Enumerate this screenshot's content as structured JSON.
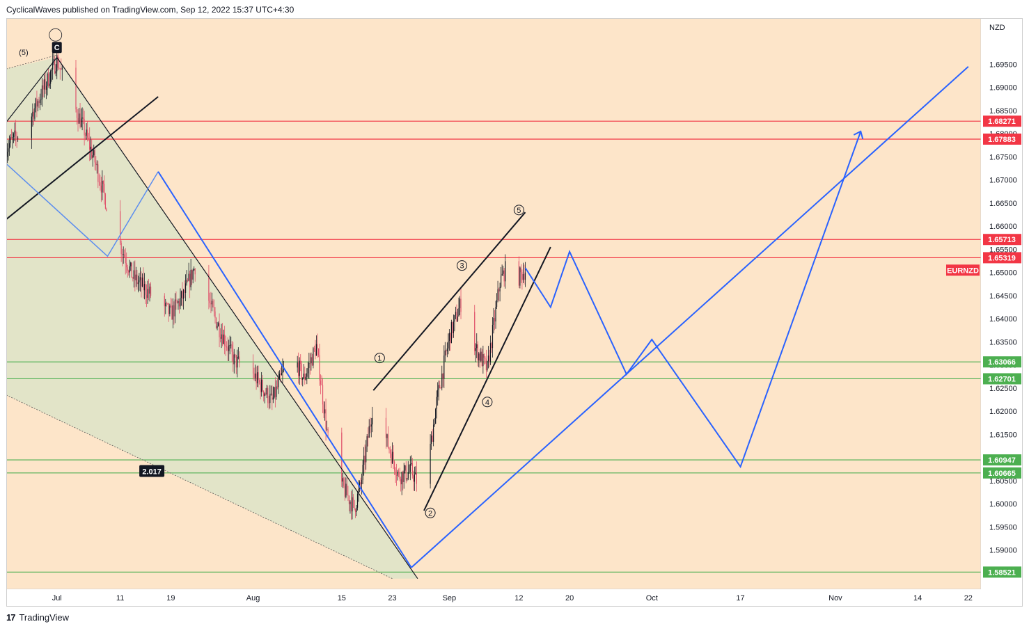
{
  "header": {
    "text": "CyclicalWaves published on TradingView.com, Sep 12, 2022 15:37 UTC+4:30"
  },
  "footer": {
    "brand": "TradingView",
    "logo_glyph": "17"
  },
  "colors": {
    "background": "#fde5c9",
    "resistance": "#f23645",
    "support": "#4caf50",
    "projection": "#2962ff",
    "candle_up": "#131722",
    "candle_down": "#e0506a"
  },
  "chart_data": {
    "type": "candlestick",
    "symbol": "EURNZD",
    "currency_label": "NZD",
    "ylim": [
      1.5815,
      1.705
    ],
    "y_ticks": [
      1.59,
      1.595,
      1.6,
      1.605,
      1.61,
      1.615,
      1.62,
      1.625,
      1.63,
      1.635,
      1.64,
      1.645,
      1.65,
      1.655,
      1.66,
      1.665,
      1.67,
      1.675,
      1.68,
      1.685,
      1.69,
      1.695
    ],
    "y_tick_labels": [
      "1.59000",
      "1.59500",
      "1.60000",
      "1.60500",
      "1.61000",
      "1.61500",
      "1.62000",
      "1.62500",
      "1.63000",
      "1.63500",
      "1.64000",
      "1.64500",
      "1.65000",
      "1.65500",
      "1.66000",
      "1.66500",
      "1.67000",
      "1.67500",
      "1.68000",
      "1.68500",
      "1.69000",
      "1.69500"
    ],
    "x_axis": {
      "start": "2022-06-23",
      "end": "2022-11-24",
      "tick_dates": [
        "2022-07-01",
        "2022-07-11",
        "2022-07-19",
        "2022-08-01",
        "2022-08-15",
        "2022-08-23",
        "2022-09-01",
        "2022-09-12",
        "2022-09-20",
        "2022-10-03",
        "2022-10-17",
        "2022-11-01",
        "2022-11-14",
        "2022-11-22"
      ],
      "tick_labels": [
        "Jul",
        "11",
        "19",
        "Aug",
        "15",
        "23",
        "Sep",
        "12",
        "20",
        "Oct",
        "17",
        "Nov",
        "14",
        "22"
      ]
    },
    "price_badge": {
      "label": "EURNZD",
      "price": 1.6505
    },
    "resistance_levels": [
      {
        "value": 1.68271,
        "label": "1.68271"
      },
      {
        "value": 1.67883,
        "label": "1.67883"
      },
      {
        "value": 1.65713,
        "label": "1.65713"
      },
      {
        "value": 1.65319,
        "label": "1.65319"
      }
    ],
    "support_levels": [
      {
        "value": 1.63066,
        "label": "1.63066"
      },
      {
        "value": 1.62701,
        "label": "1.62701"
      },
      {
        "value": 1.60947,
        "label": "1.60947"
      },
      {
        "value": 1.60665,
        "label": "1.60665"
      },
      {
        "value": 1.58521,
        "label": "1.58521"
      }
    ],
    "waypoints": [
      [
        "2022-06-23",
        1.677
      ],
      [
        "2022-06-25",
        1.68
      ],
      [
        "2022-06-27",
        1.684
      ],
      [
        "2022-06-29",
        1.69
      ],
      [
        "2022-07-01",
        1.696
      ],
      [
        "2022-07-03",
        1.688
      ],
      [
        "2022-07-05",
        1.682
      ],
      [
        "2022-07-07",
        1.674
      ],
      [
        "2022-07-09",
        1.664
      ],
      [
        "2022-07-11",
        1.656
      ],
      [
        "2022-07-13",
        1.649
      ],
      [
        "2022-07-16",
        1.645
      ],
      [
        "2022-07-19",
        1.641
      ],
      [
        "2022-07-21",
        1.645
      ],
      [
        "2022-07-23",
        1.652
      ],
      [
        "2022-07-26",
        1.64
      ],
      [
        "2022-07-29",
        1.631
      ],
      [
        "2022-08-01",
        1.628
      ],
      [
        "2022-08-04",
        1.622
      ],
      [
        "2022-08-07",
        1.633
      ],
      [
        "2022-08-09",
        1.627
      ],
      [
        "2022-08-11",
        1.634
      ],
      [
        "2022-08-13",
        1.612
      ],
      [
        "2022-08-15",
        1.604
      ],
      [
        "2022-08-17",
        1.599
      ],
      [
        "2022-08-18",
        1.604
      ],
      [
        "2022-08-20",
        1.622
      ],
      [
        "2022-08-22",
        1.614
      ],
      [
        "2022-08-24",
        1.606
      ],
      [
        "2022-08-26",
        1.607
      ],
      [
        "2022-08-28",
        1.602
      ],
      [
        "2022-08-30",
        1.622
      ],
      [
        "2022-09-01",
        1.636
      ],
      [
        "2022-09-03",
        1.644
      ],
      [
        "2022-09-05",
        1.634
      ],
      [
        "2022-09-07",
        1.629
      ],
      [
        "2022-09-09",
        1.648
      ],
      [
        "2022-09-11",
        1.654
      ],
      [
        "2022-09-12",
        1.649
      ],
      [
        "2022-09-13",
        1.6505
      ]
    ],
    "elliott_labels": [
      {
        "label": "1",
        "date": "2022-08-21",
        "value": 1.6315
      },
      {
        "label": "2",
        "date": "2022-08-29",
        "value": 1.598
      },
      {
        "label": "3",
        "date": "2022-09-03",
        "value": 1.6515
      },
      {
        "label": "4",
        "date": "2022-09-07",
        "value": 1.622
      },
      {
        "label": "5",
        "date": "2022-09-12",
        "value": 1.6635
      }
    ],
    "wave_c_label": {
      "label": "C",
      "date": "2022-07-01",
      "value": 1.6985
    },
    "wave_5_label": {
      "label": "(5)",
      "date": "2022-06-25",
      "value": 1.697
    },
    "fib_label": {
      "label": "2.017",
      "date": "2022-07-16",
      "value": 1.607
    },
    "projection_path": [
      [
        "2022-09-13",
        1.651
      ],
      [
        "2022-09-17",
        1.6425
      ],
      [
        "2022-09-20",
        1.6545
      ],
      [
        "2022-09-29",
        1.628
      ],
      [
        "2022-10-03",
        1.6355
      ],
      [
        "2022-10-17",
        1.608
      ],
      [
        "2022-11-05",
        1.6805
      ]
    ]
  }
}
